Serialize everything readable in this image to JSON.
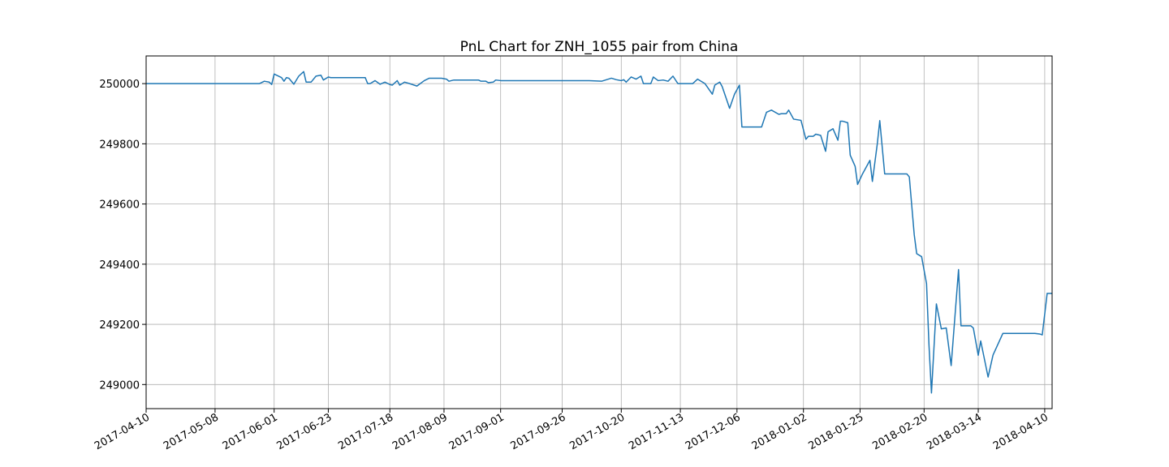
{
  "chart_data": {
    "type": "line",
    "title": "PnL Chart for ZNH_1055 pair from China",
    "xlabel": "",
    "ylabel": "",
    "x_range": [
      "2017-04-10",
      "2018-04-13"
    ],
    "ylim": [
      248920,
      250092
    ],
    "x_ticks": [
      "2017-04-10",
      "2017-05-08",
      "2017-06-01",
      "2017-06-23",
      "2017-07-18",
      "2017-08-09",
      "2017-09-01",
      "2017-09-26",
      "2017-10-20",
      "2017-11-13",
      "2017-12-06",
      "2018-01-02",
      "2018-01-25",
      "2018-02-20",
      "2018-03-14",
      "2018-04-10"
    ],
    "y_ticks": [
      249000,
      249200,
      249400,
      249600,
      249800,
      250000
    ],
    "grid": true,
    "line_color": "#1f77b4",
    "series": [
      {
        "points": [
          [
            "2017-04-10",
            250000
          ],
          [
            "2017-05-26",
            250000
          ],
          [
            "2017-05-28",
            250008
          ],
          [
            "2017-05-30",
            250005
          ],
          [
            "2017-05-31",
            249997
          ],
          [
            "2017-06-01",
            250032
          ],
          [
            "2017-06-04",
            250020
          ],
          [
            "2017-06-05",
            250008
          ],
          [
            "2017-06-06",
            250020
          ],
          [
            "2017-06-07",
            250018
          ],
          [
            "2017-06-09",
            249998
          ],
          [
            "2017-06-11",
            250025
          ],
          [
            "2017-06-13",
            250040
          ],
          [
            "2017-06-14",
            250005
          ],
          [
            "2017-06-16",
            250005
          ],
          [
            "2017-06-18",
            250025
          ],
          [
            "2017-06-20",
            250028
          ],
          [
            "2017-06-21",
            250012
          ],
          [
            "2017-06-23",
            250022
          ],
          [
            "2017-06-24",
            250020
          ],
          [
            "2017-07-08",
            250020
          ],
          [
            "2017-07-09",
            250000
          ],
          [
            "2017-07-10",
            250000
          ],
          [
            "2017-07-12",
            250010
          ],
          [
            "2017-07-14",
            249998
          ],
          [
            "2017-07-16",
            250005
          ],
          [
            "2017-07-18",
            249997
          ],
          [
            "2017-07-19",
            249995
          ],
          [
            "2017-07-21",
            250010
          ],
          [
            "2017-07-22",
            249995
          ],
          [
            "2017-07-24",
            250005
          ],
          [
            "2017-07-26",
            250000
          ],
          [
            "2017-07-29",
            249992
          ],
          [
            "2017-08-01",
            250010
          ],
          [
            "2017-08-03",
            250018
          ],
          [
            "2017-08-08",
            250018
          ],
          [
            "2017-08-10",
            250015
          ],
          [
            "2017-08-11",
            250008
          ],
          [
            "2017-08-13",
            250012
          ],
          [
            "2017-08-23",
            250012
          ],
          [
            "2017-08-24",
            250008
          ],
          [
            "2017-08-26",
            250008
          ],
          [
            "2017-08-27",
            250003
          ],
          [
            "2017-08-29",
            250005
          ],
          [
            "2017-08-30",
            250012
          ],
          [
            "2017-09-01",
            250010
          ],
          [
            "2017-10-07",
            250010
          ],
          [
            "2017-10-12",
            250008
          ],
          [
            "2017-10-16",
            250018
          ],
          [
            "2017-10-18",
            250013
          ],
          [
            "2017-10-20",
            250010
          ],
          [
            "2017-10-21",
            250013
          ],
          [
            "2017-10-22",
            250005
          ],
          [
            "2017-10-24",
            250022
          ],
          [
            "2017-10-26",
            250015
          ],
          [
            "2017-10-28",
            250025
          ],
          [
            "2017-10-29",
            250000
          ],
          [
            "2017-11-01",
            250000
          ],
          [
            "2017-11-02",
            250022
          ],
          [
            "2017-11-04",
            250010
          ],
          [
            "2017-11-06",
            250012
          ],
          [
            "2017-11-08",
            250008
          ],
          [
            "2017-11-10",
            250025
          ],
          [
            "2017-11-12",
            250000
          ],
          [
            "2017-11-18",
            250000
          ],
          [
            "2017-11-20",
            250015
          ],
          [
            "2017-11-23",
            250000
          ],
          [
            "2017-11-26",
            249965
          ],
          [
            "2017-11-27",
            249995
          ],
          [
            "2017-11-29",
            250005
          ],
          [
            "2017-11-30",
            249990
          ],
          [
            "2017-12-03",
            249918
          ],
          [
            "2017-12-05",
            249965
          ],
          [
            "2017-12-07",
            249995
          ],
          [
            "2017-12-08",
            249856
          ],
          [
            "2017-12-16",
            249856
          ],
          [
            "2017-12-18",
            249905
          ],
          [
            "2017-12-20",
            249912
          ],
          [
            "2017-12-23",
            249898
          ],
          [
            "2017-12-24",
            249900
          ],
          [
            "2017-12-26",
            249900
          ],
          [
            "2017-12-27",
            249912
          ],
          [
            "2017-12-29",
            249882
          ],
          [
            "2018-01-01",
            249878
          ],
          [
            "2018-01-03",
            249815
          ],
          [
            "2018-01-04",
            249825
          ],
          [
            "2018-01-06",
            249825
          ],
          [
            "2018-01-07",
            249832
          ],
          [
            "2018-01-09",
            249828
          ],
          [
            "2018-01-11",
            249775
          ],
          [
            "2018-01-12",
            249840
          ],
          [
            "2018-01-14",
            249850
          ],
          [
            "2018-01-16",
            249812
          ],
          [
            "2018-01-17",
            249875
          ],
          [
            "2018-01-18",
            249875
          ],
          [
            "2018-01-20",
            249870
          ],
          [
            "2018-01-21",
            249762
          ],
          [
            "2018-01-23",
            249725
          ],
          [
            "2018-01-24",
            249665
          ],
          [
            "2018-01-26",
            249700
          ],
          [
            "2018-01-29",
            249745
          ],
          [
            "2018-01-30",
            249675
          ],
          [
            "2018-02-01",
            249800
          ],
          [
            "2018-02-02",
            249877
          ],
          [
            "2018-02-04",
            249700
          ],
          [
            "2018-02-13",
            249700
          ],
          [
            "2018-02-14",
            249690
          ],
          [
            "2018-02-16",
            249498
          ],
          [
            "2018-02-17",
            249435
          ],
          [
            "2018-02-19",
            249425
          ],
          [
            "2018-02-21",
            249335
          ],
          [
            "2018-02-22",
            249130
          ],
          [
            "2018-02-23",
            248972
          ],
          [
            "2018-02-25",
            249268
          ],
          [
            "2018-02-27",
            249185
          ],
          [
            "2018-03-01",
            249188
          ],
          [
            "2018-03-03",
            249063
          ],
          [
            "2018-03-06",
            249382
          ],
          [
            "2018-03-07",
            249195
          ],
          [
            "2018-03-11",
            249195
          ],
          [
            "2018-03-12",
            249188
          ],
          [
            "2018-03-14",
            249097
          ],
          [
            "2018-03-15",
            249145
          ],
          [
            "2018-03-18",
            249025
          ],
          [
            "2018-03-20",
            249098
          ],
          [
            "2018-03-24",
            249170
          ],
          [
            "2018-04-06",
            249170
          ],
          [
            "2018-04-08",
            249168
          ],
          [
            "2018-04-09",
            249165
          ],
          [
            "2018-04-11",
            249303
          ],
          [
            "2018-04-13",
            249303
          ]
        ]
      }
    ]
  }
}
